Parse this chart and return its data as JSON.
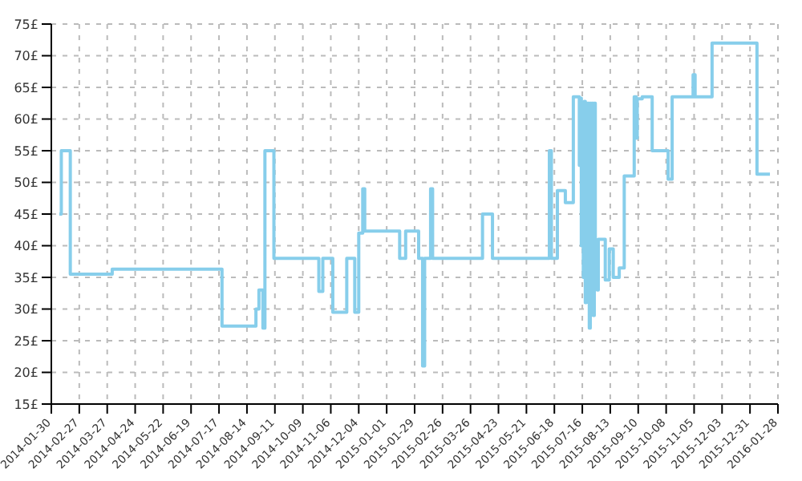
{
  "chart_data": {
    "type": "step",
    "marker": "none",
    "grid": true,
    "legend": false,
    "x": [
      "2014-02-07",
      "2014-02-09",
      "2014-02-18",
      "2014-04-01",
      "2014-07-20",
      "2014-08-23",
      "2014-08-26",
      "2014-08-30",
      "2014-09-01",
      "2014-09-10",
      "2014-10-25",
      "2014-10-29",
      "2014-11-08",
      "2014-11-22",
      "2014-11-30",
      "2014-12-04",
      "2014-12-08",
      "2014-12-10",
      "2015-01-14",
      "2015-01-20",
      "2015-02-02",
      "2015-02-06",
      "2015-02-08",
      "2015-02-14",
      "2015-02-16",
      "2015-04-07",
      "2015-04-17",
      "2015-06-13",
      "2015-06-15",
      "2015-06-21",
      "2015-06-29",
      "2015-07-07",
      "2015-07-13",
      "2015-07-14",
      "2015-07-15",
      "2015-07-16",
      "2015-07-17",
      "2015-07-18",
      "2015-07-19",
      "2015-07-20",
      "2015-07-21",
      "2015-07-22",
      "2015-07-23",
      "2015-07-24",
      "2015-07-25",
      "2015-07-26",
      "2015-07-27",
      "2015-07-28",
      "2015-07-29",
      "2015-07-30",
      "2015-07-31",
      "2015-08-01",
      "2015-08-08",
      "2015-08-12",
      "2015-08-16",
      "2015-08-22",
      "2015-08-27",
      "2015-09-06",
      "2015-09-08",
      "2015-09-09",
      "2015-09-14",
      "2015-09-24",
      "2015-10-10",
      "2015-10-14",
      "2015-11-04",
      "2015-11-06",
      "2015-11-23",
      "2016-01-07",
      "2016-01-20"
    ],
    "series": [
      {
        "color": "#87ceeb",
        "values": [
          45,
          55,
          35.5,
          36.3,
          27.3,
          30,
          33,
          27,
          55,
          38,
          32.8,
          38,
          29.5,
          38,
          29.5,
          42,
          49,
          42.3,
          38,
          42.3,
          38,
          21,
          38,
          49,
          38,
          45,
          38,
          55,
          38,
          48.7,
          46.8,
          63.5,
          52.7,
          63.3,
          40,
          62.5,
          35,
          62.8,
          31,
          62.5,
          37,
          62.5,
          27,
          62.5,
          33,
          62.5,
          29,
          62.5,
          36,
          40,
          33,
          41,
          34.6,
          39.5,
          35,
          36.5,
          51,
          63.5,
          57,
          63.2,
          63.5,
          55,
          50.5,
          63.5,
          67,
          63.5,
          72,
          51.3,
          51.3
        ]
      }
    ],
    "xlim": [
      "2014-01-30",
      "2016-01-28"
    ],
    "xticks": [
      "2014-01-30",
      "2014-02-27",
      "2014-03-27",
      "2014-04-24",
      "2014-05-22",
      "2014-06-19",
      "2014-07-17",
      "2014-08-14",
      "2014-09-11",
      "2014-10-09",
      "2014-11-06",
      "2014-12-04",
      "2015-01-01",
      "2015-01-29",
      "2015-02-26",
      "2015-03-26",
      "2015-04-23",
      "2015-05-21",
      "2015-06-18",
      "2015-07-16",
      "2015-08-13",
      "2015-09-10",
      "2015-10-08",
      "2015-11-05",
      "2015-12-03",
      "2015-12-31",
      "2016-01-28"
    ],
    "ylim": [
      15,
      75
    ],
    "yticks": [
      {
        "value": 15,
        "label": "15£"
      },
      {
        "value": 20,
        "label": "20£"
      },
      {
        "value": 25,
        "label": "25£"
      },
      {
        "value": 30,
        "label": "30£"
      },
      {
        "value": 35,
        "label": "35£"
      },
      {
        "value": 40,
        "label": "40£"
      },
      {
        "value": 45,
        "label": "45£"
      },
      {
        "value": 50,
        "label": "50£"
      },
      {
        "value": 55,
        "label": "55£"
      },
      {
        "value": 60,
        "label": "60£"
      },
      {
        "value": 65,
        "label": "65£"
      },
      {
        "value": 70,
        "label": "70£"
      },
      {
        "value": 75,
        "label": "75£"
      }
    ]
  }
}
